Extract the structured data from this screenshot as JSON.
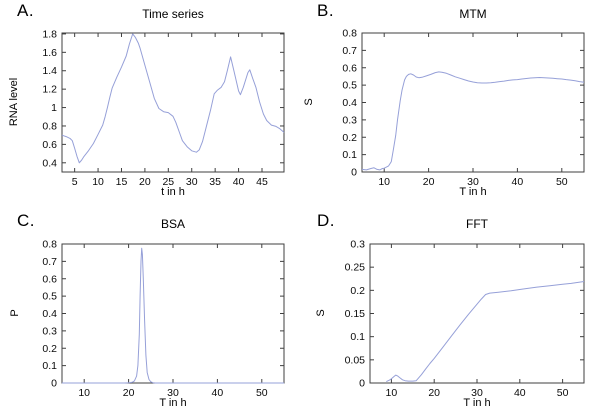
{
  "page": {
    "background": "#ffffff",
    "border_color": "#3f3f3f",
    "text_color": "#0a0a0a"
  },
  "chart_data": [
    {
      "id": "a",
      "letter": "A.",
      "title": "Time series",
      "xlabel": "t in h",
      "ylabel": "RNA level",
      "type": "line",
      "legend": "none",
      "grid": false,
      "line_color": "#96a0d8",
      "xlim": [
        2.3,
        49.7
      ],
      "ylim": [
        0.3,
        1.81
      ],
      "xticks": [
        [
          5,
          "5"
        ],
        [
          10,
          "10"
        ],
        [
          15,
          "15"
        ],
        [
          20,
          "20"
        ],
        [
          25,
          "25"
        ],
        [
          30,
          "30"
        ],
        [
          35,
          "35"
        ],
        [
          40,
          "40"
        ],
        [
          45,
          "45"
        ]
      ],
      "yticks": [
        [
          0.4,
          "0.4"
        ],
        [
          0.6,
          "0.6"
        ],
        [
          0.8,
          "0.8"
        ],
        [
          1,
          "1"
        ],
        [
          1.2,
          "1.2"
        ],
        [
          1.4,
          "1.4"
        ],
        [
          1.6,
          "1.6"
        ],
        [
          1.8,
          "1.8"
        ]
      ],
      "points": [
        [
          2.3,
          0.7
        ],
        [
          3.2,
          0.685
        ],
        [
          4,
          0.665
        ],
        [
          4.5,
          0.64
        ],
        [
          5,
          0.56
        ],
        [
          5.5,
          0.47
        ],
        [
          6,
          0.4
        ],
        [
          6.5,
          0.43
        ],
        [
          7,
          0.47
        ],
        [
          8,
          0.535
        ],
        [
          9,
          0.61
        ],
        [
          10,
          0.71
        ],
        [
          11,
          0.81
        ],
        [
          11.5,
          0.9
        ],
        [
          12,
          1.0
        ],
        [
          12.5,
          1.11
        ],
        [
          13,
          1.21
        ],
        [
          14,
          1.33
        ],
        [
          15,
          1.44
        ],
        [
          16,
          1.56
        ],
        [
          16.7,
          1.69
        ],
        [
          17.4,
          1.8
        ],
        [
          18,
          1.76
        ],
        [
          18.6,
          1.7
        ],
        [
          19,
          1.64
        ],
        [
          20,
          1.46
        ],
        [
          21,
          1.28
        ],
        [
          22,
          1.1
        ],
        [
          23,
          0.99
        ],
        [
          24,
          0.955
        ],
        [
          25,
          0.945
        ],
        [
          26,
          0.905
        ],
        [
          26.6,
          0.84
        ],
        [
          27.3,
          0.74
        ],
        [
          28,
          0.64
        ],
        [
          29,
          0.575
        ],
        [
          30,
          0.53
        ],
        [
          31,
          0.515
        ],
        [
          31.6,
          0.54
        ],
        [
          32.3,
          0.63
        ],
        [
          33,
          0.77
        ],
        [
          34,
          0.97
        ],
        [
          34.8,
          1.15
        ],
        [
          35.5,
          1.19
        ],
        [
          36.3,
          1.22
        ],
        [
          37,
          1.28
        ],
        [
          37.6,
          1.4
        ],
        [
          38.3,
          1.55
        ],
        [
          39,
          1.4
        ],
        [
          40,
          1.18
        ],
        [
          40.4,
          1.14
        ],
        [
          41,
          1.22
        ],
        [
          42,
          1.38
        ],
        [
          42.4,
          1.41
        ],
        [
          43,
          1.32
        ],
        [
          43.7,
          1.22
        ],
        [
          44.5,
          1.06
        ],
        [
          45.3,
          0.93
        ],
        [
          46,
          0.86
        ],
        [
          47,
          0.81
        ],
        [
          48,
          0.795
        ],
        [
          48.8,
          0.77
        ],
        [
          49.7,
          0.73
        ]
      ]
    },
    {
      "id": "b",
      "letter": "B.",
      "title": "MTM",
      "xlabel": "T in h",
      "ylabel": "S",
      "type": "line",
      "legend": "none",
      "grid": false,
      "line_color": "#96a0d8",
      "xlim": [
        5,
        55
      ],
      "ylim": [
        0,
        0.8
      ],
      "xticks": [
        [
          10,
          "10"
        ],
        [
          20,
          "20"
        ],
        [
          30,
          "30"
        ],
        [
          40,
          "40"
        ],
        [
          50,
          "50"
        ]
      ],
      "yticks": [
        [
          0,
          "0"
        ],
        [
          0.1,
          "0.1"
        ],
        [
          0.2,
          "0.2"
        ],
        [
          0.3,
          "0.3"
        ],
        [
          0.4,
          "0.4"
        ],
        [
          0.5,
          "0.5"
        ],
        [
          0.6,
          "0.6"
        ],
        [
          0.7,
          "0.7"
        ],
        [
          0.8,
          "0.8"
        ]
      ],
      "points": [
        [
          5,
          0.015
        ],
        [
          6,
          0.012
        ],
        [
          7,
          0.02
        ],
        [
          7.7,
          0.024
        ],
        [
          8.4,
          0.015
        ],
        [
          9,
          0.012
        ],
        [
          9.6,
          0.02
        ],
        [
          10,
          0.022
        ],
        [
          10.6,
          0.03
        ],
        [
          11,
          0.035
        ],
        [
          11.6,
          0.06
        ],
        [
          12,
          0.12
        ],
        [
          12.6,
          0.21
        ],
        [
          13,
          0.3
        ],
        [
          13.6,
          0.41
        ],
        [
          14,
          0.47
        ],
        [
          14.6,
          0.53
        ],
        [
          15,
          0.55
        ],
        [
          15.5,
          0.562
        ],
        [
          16,
          0.565
        ],
        [
          16.6,
          0.558
        ],
        [
          17.2,
          0.547
        ],
        [
          17.8,
          0.543
        ],
        [
          18.5,
          0.545
        ],
        [
          19.5,
          0.553
        ],
        [
          20.5,
          0.562
        ],
        [
          21.5,
          0.572
        ],
        [
          22.3,
          0.576
        ],
        [
          23,
          0.574
        ],
        [
          24,
          0.568
        ],
        [
          25,
          0.558
        ],
        [
          26,
          0.548
        ],
        [
          27,
          0.54
        ],
        [
          28,
          0.532
        ],
        [
          29,
          0.524
        ],
        [
          30,
          0.518
        ],
        [
          31,
          0.514
        ],
        [
          32,
          0.512
        ],
        [
          33,
          0.512
        ],
        [
          34,
          0.514
        ],
        [
          35,
          0.517
        ],
        [
          36,
          0.52
        ],
        [
          37,
          0.523
        ],
        [
          38,
          0.527
        ],
        [
          39,
          0.53
        ],
        [
          40,
          0.532
        ],
        [
          41,
          0.535
        ],
        [
          42,
          0.538
        ],
        [
          43,
          0.541
        ],
        [
          44,
          0.543
        ],
        [
          45,
          0.544
        ],
        [
          46,
          0.543
        ],
        [
          47,
          0.541
        ],
        [
          48,
          0.539
        ],
        [
          49,
          0.537
        ],
        [
          50,
          0.535
        ],
        [
          51,
          0.532
        ],
        [
          52,
          0.529
        ],
        [
          53,
          0.525
        ],
        [
          54,
          0.52
        ],
        [
          55,
          0.517
        ]
      ]
    },
    {
      "id": "c",
      "letter": "C.",
      "title": "BSA",
      "xlabel": "T in h",
      "ylabel": "P",
      "type": "line",
      "legend": "none",
      "grid": false,
      "line_color": "#96a0d8",
      "xlim": [
        5,
        55
      ],
      "ylim": [
        0,
        0.8
      ],
      "xticks": [
        [
          10,
          "10"
        ],
        [
          20,
          "20"
        ],
        [
          30,
          "30"
        ],
        [
          40,
          "40"
        ],
        [
          50,
          "50"
        ]
      ],
      "yticks": [
        [
          0,
          "0"
        ],
        [
          0.1,
          "0.1"
        ],
        [
          0.2,
          "0.2"
        ],
        [
          0.3,
          "0.3"
        ],
        [
          0.4,
          "0.4"
        ],
        [
          0.5,
          "0.5"
        ],
        [
          0.6,
          "0.6"
        ],
        [
          0.7,
          "0.7"
        ],
        [
          0.8,
          "0.8"
        ]
      ],
      "points": [
        [
          5,
          0
        ],
        [
          10,
          0
        ],
        [
          15,
          0
        ],
        [
          19,
          0
        ],
        [
          20,
          0.001
        ],
        [
          20.8,
          0.004
        ],
        [
          21.3,
          0.012
        ],
        [
          21.8,
          0.04
        ],
        [
          22.1,
          0.1
        ],
        [
          22.4,
          0.28
        ],
        [
          22.6,
          0.5
        ],
        [
          22.8,
          0.7
        ],
        [
          22.95,
          0.775
        ],
        [
          23.1,
          0.74
        ],
        [
          23.3,
          0.6
        ],
        [
          23.6,
          0.36
        ],
        [
          23.9,
          0.16
        ],
        [
          24.2,
          0.06
        ],
        [
          24.6,
          0.02
        ],
        [
          25,
          0.007
        ],
        [
          25.5,
          0.002
        ],
        [
          26,
          0
        ],
        [
          30,
          0
        ],
        [
          40,
          0
        ],
        [
          50,
          0
        ],
        [
          55,
          0
        ]
      ]
    },
    {
      "id": "d",
      "letter": "D.",
      "title": "FFT",
      "xlabel": "T in h",
      "ylabel": "S",
      "type": "line",
      "legend": "none",
      "grid": false,
      "line_color": "#96a0d8",
      "xlim": [
        5,
        55
      ],
      "ylim": [
        0,
        0.3
      ],
      "xticks": [
        [
          10,
          "10"
        ],
        [
          20,
          "20"
        ],
        [
          30,
          "30"
        ],
        [
          40,
          "40"
        ],
        [
          50,
          "50"
        ]
      ],
      "yticks": [
        [
          0,
          "0"
        ],
        [
          0.05,
          "0.05"
        ],
        [
          0.1,
          "0.1"
        ],
        [
          0.15,
          "0.15"
        ],
        [
          0.2,
          "0.2"
        ],
        [
          0.25,
          "0.25"
        ],
        [
          0.3,
          "0.3"
        ]
      ],
      "points": [
        [
          8.8,
          0.003
        ],
        [
          9.5,
          0.006
        ],
        [
          10,
          0.009
        ],
        [
          10.6,
          0.014
        ],
        [
          11,
          0.017
        ],
        [
          11.5,
          0.015
        ],
        [
          12,
          0.011
        ],
        [
          12.6,
          0.007
        ],
        [
          13.2,
          0.005
        ],
        [
          14,
          0.004
        ],
        [
          15,
          0.004
        ],
        [
          15.8,
          0.005
        ],
        [
          17,
          0.018
        ],
        [
          18,
          0.03
        ],
        [
          19,
          0.042
        ],
        [
          20,
          0.053
        ],
        [
          22,
          0.077
        ],
        [
          24,
          0.101
        ],
        [
          26,
          0.125
        ],
        [
          28,
          0.148
        ],
        [
          30,
          0.17
        ],
        [
          31,
          0.181
        ],
        [
          32,
          0.191
        ],
        [
          33,
          0.194
        ],
        [
          35,
          0.196
        ],
        [
          38,
          0.199
        ],
        [
          41,
          0.203
        ],
        [
          44,
          0.207
        ],
        [
          47,
          0.21
        ],
        [
          50,
          0.213
        ],
        [
          52,
          0.215
        ],
        [
          55,
          0.219
        ]
      ]
    }
  ]
}
